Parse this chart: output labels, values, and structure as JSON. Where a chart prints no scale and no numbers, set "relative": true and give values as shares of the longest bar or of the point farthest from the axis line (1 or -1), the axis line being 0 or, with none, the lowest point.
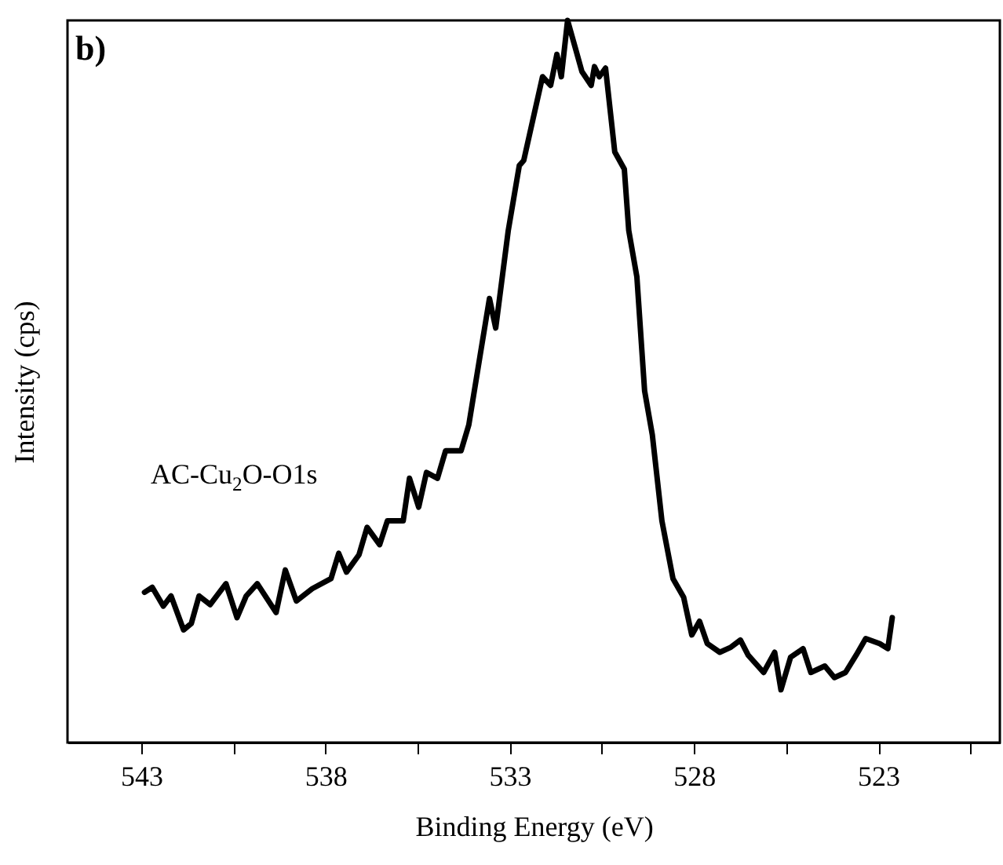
{
  "chart_data": {
    "type": "line",
    "relative": true,
    "xlabel": "Binding Energy (eV)",
    "ylabel": "Intensity (cps)",
    "tick_labels": "x",
    "line_style": "solid",
    "annotations": [
      "b)",
      "AC-Cu$_{2}$O-O1s"
    ],
    "xlim": [
      545.0,
      519.7
    ],
    "xticks": [
      543,
      {
        "value": 540.5,
        "label": null
      },
      538,
      {
        "value": 535.5,
        "label": null
      },
      533,
      {
        "value": 530.5,
        "label": null
      },
      528,
      {
        "value": 525.5,
        "label": null
      },
      523,
      {
        "value": 520.5,
        "label": null
      }
    ],
    "x": [
      542.91,
      542.7,
      542.4,
      542.19,
      541.85,
      541.64,
      541.43,
      541.13,
      540.7,
      540.4,
      540.15,
      539.85,
      539.34,
      539.09,
      538.79,
      538.36,
      537.85,
      537.64,
      537.43,
      537.09,
      536.87,
      536.53,
      536.32,
      535.89,
      535.72,
      535.47,
      535.26,
      534.96,
      534.74,
      534.32,
      534.11,
      533.81,
      533.55,
      533.38,
      533.04,
      532.74,
      532.62,
      532.11,
      531.89,
      531.72,
      531.6,
      531.43,
      531.21,
      531.04,
      530.79,
      530.7,
      530.57,
      530.4,
      530.15,
      529.89,
      529.77,
      529.55,
      529.34,
      529.13,
      528.87,
      528.57,
      528.28,
      528.06,
      527.85,
      527.64,
      527.3,
      527.0,
      526.74,
      526.53,
      526.11,
      525.81,
      525.64,
      525.38,
      525.04,
      524.83,
      524.45,
      524.19,
      523.89,
      523.6,
      523.34,
      522.96,
      522.74,
      522.62
    ],
    "series": [
      {
        "color": "#000000",
        "values": [
          0.208,
          0.215,
          0.189,
          0.203,
          0.156,
          0.165,
          0.203,
          0.191,
          0.22,
          0.173,
          0.203,
          0.22,
          0.18,
          0.239,
          0.196,
          0.213,
          0.227,
          0.262,
          0.236,
          0.26,
          0.298,
          0.274,
          0.307,
          0.307,
          0.366,
          0.326,
          0.374,
          0.366,
          0.404,
          0.404,
          0.44,
          0.534,
          0.615,
          0.574,
          0.709,
          0.799,
          0.806,
          0.922,
          0.91,
          0.953,
          0.922,
          1.0,
          0.96,
          0.929,
          0.91,
          0.936,
          0.922,
          0.934,
          0.818,
          0.794,
          0.709,
          0.645,
          0.487,
          0.426,
          0.307,
          0.227,
          0.201,
          0.149,
          0.168,
          0.137,
          0.125,
          0.132,
          0.142,
          0.121,
          0.097,
          0.125,
          0.073,
          0.118,
          0.13,
          0.097,
          0.106,
          0.09,
          0.097,
          0.121,
          0.144,
          0.137,
          0.13,
          0.173
        ]
      }
    ]
  }
}
